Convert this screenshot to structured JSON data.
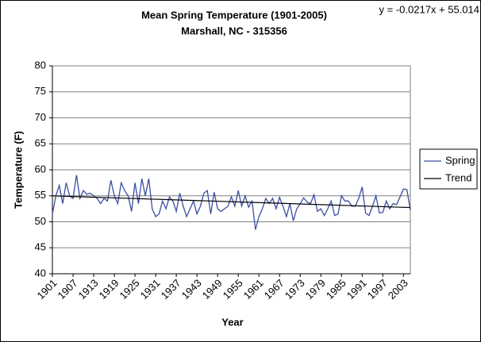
{
  "chart_data": {
    "type": "line",
    "title": "Mean Spring Temperature (1901-2005)",
    "subtitle": "Marshall, NC - 315356",
    "annotation": "y = -0.0217x + 55.014",
    "x_label": "Year",
    "y_label": "Temperature (F)",
    "x": [
      1901,
      1902,
      1903,
      1904,
      1905,
      1906,
      1907,
      1908,
      1909,
      1910,
      1911,
      1912,
      1913,
      1914,
      1915,
      1916,
      1917,
      1918,
      1919,
      1920,
      1921,
      1922,
      1923,
      1924,
      1925,
      1926,
      1927,
      1928,
      1929,
      1930,
      1931,
      1932,
      1933,
      1934,
      1935,
      1936,
      1937,
      1938,
      1939,
      1940,
      1941,
      1942,
      1943,
      1944,
      1945,
      1946,
      1947,
      1948,
      1949,
      1950,
      1951,
      1952,
      1953,
      1954,
      1955,
      1956,
      1957,
      1958,
      1959,
      1960,
      1961,
      1962,
      1963,
      1964,
      1965,
      1966,
      1967,
      1968,
      1969,
      1970,
      1971,
      1972,
      1973,
      1974,
      1975,
      1976,
      1977,
      1978,
      1979,
      1980,
      1981,
      1982,
      1983,
      1984,
      1985,
      1986,
      1987,
      1988,
      1989,
      1990,
      1991,
      1992,
      1993,
      1994,
      1995,
      1996,
      1997,
      1998,
      1999,
      2000,
      2001,
      2002,
      2003,
      2004,
      2005
    ],
    "series": [
      {
        "name": "Spring",
        "color": "#3a4fa0",
        "values": [
          51.5,
          55,
          57,
          53.5,
          57.5,
          55,
          54.5,
          59,
          54.5,
          56,
          55.3,
          55.5,
          55,
          54.5,
          53.5,
          54.5,
          54,
          58,
          55,
          53.5,
          57.5,
          56,
          55,
          52,
          57.5,
          53.5,
          58.3,
          55,
          58.3,
          52.5,
          51,
          51.5,
          54,
          52.5,
          54.8,
          54,
          52,
          55.5,
          53,
          51,
          52.5,
          54,
          51.5,
          53,
          55.5,
          56,
          51.5,
          55.7,
          52.5,
          52,
          52.5,
          53,
          54.8,
          53,
          56,
          53,
          55,
          52.8,
          54,
          48.5,
          51,
          52.5,
          54.5,
          53.5,
          54.5,
          52.5,
          54.7,
          53,
          51,
          53.5,
          50.2,
          52.5,
          53.5,
          54.6,
          53.8,
          53.5,
          55.2,
          52,
          52.5,
          51.2,
          52.5,
          54,
          51.2,
          51.5,
          55,
          54,
          54,
          53,
          53,
          54.5,
          56.7,
          51.7,
          51.2,
          53,
          55,
          51.7,
          51.8,
          54,
          52.5,
          53.5,
          53.3,
          54.8,
          56.3,
          56.2,
          52.2
        ]
      },
      {
        "name": "Trend",
        "color": "#000000",
        "x": [
          1901,
          2005
        ],
        "values": [
          54.99,
          52.74
        ]
      }
    ],
    "xlim": [
      1901,
      2005
    ],
    "xticks": [
      1901,
      1907,
      1913,
      1919,
      1925,
      1931,
      1937,
      1943,
      1949,
      1955,
      1961,
      1967,
      1973,
      1979,
      1985,
      1991,
      1997,
      2003
    ],
    "ylim": [
      40,
      80
    ],
    "yticks": [
      40,
      45,
      50,
      55,
      60,
      65,
      70,
      75,
      80
    ],
    "grid": true,
    "legend": "right"
  }
}
